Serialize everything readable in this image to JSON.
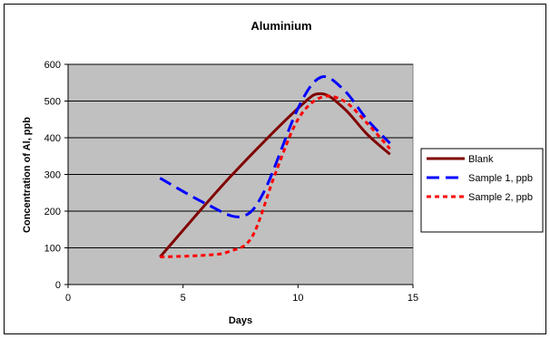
{
  "chart_data": {
    "type": "line",
    "title": "Aluminium",
    "xlabel": "Days",
    "ylabel": "Concentration of Al, ppb",
    "xlim": [
      0,
      15
    ],
    "ylim": [
      0,
      600
    ],
    "xticks": [
      0,
      5,
      10,
      15
    ],
    "yticks": [
      0,
      100,
      200,
      300,
      400,
      500,
      600
    ],
    "grid": true,
    "plot_background": "#c0c0c0",
    "legend_position": "right",
    "series": [
      {
        "name": "Blank",
        "color": "#800000",
        "style": "solid",
        "x": [
          4,
          7,
          10,
          11,
          12,
          13,
          14
        ],
        "y": [
          75,
          290,
          480,
          520,
          480,
          410,
          355
        ]
      },
      {
        "name": "Sample 1, ppb",
        "color": "#0000ff",
        "style": "dashed",
        "x": [
          4,
          6,
          7.5,
          8.5,
          10,
          11,
          12,
          13,
          14
        ],
        "y": [
          290,
          220,
          185,
          250,
          480,
          565,
          530,
          450,
          385
        ]
      },
      {
        "name": "Sample 2, ppb",
        "color": "#ff0000",
        "style": "dotted",
        "x": [
          4,
          6,
          7,
          8,
          9,
          10,
          11,
          12,
          13,
          14
        ],
        "y": [
          75,
          80,
          90,
          130,
          300,
          450,
          510,
          500,
          440,
          370
        ]
      }
    ]
  }
}
